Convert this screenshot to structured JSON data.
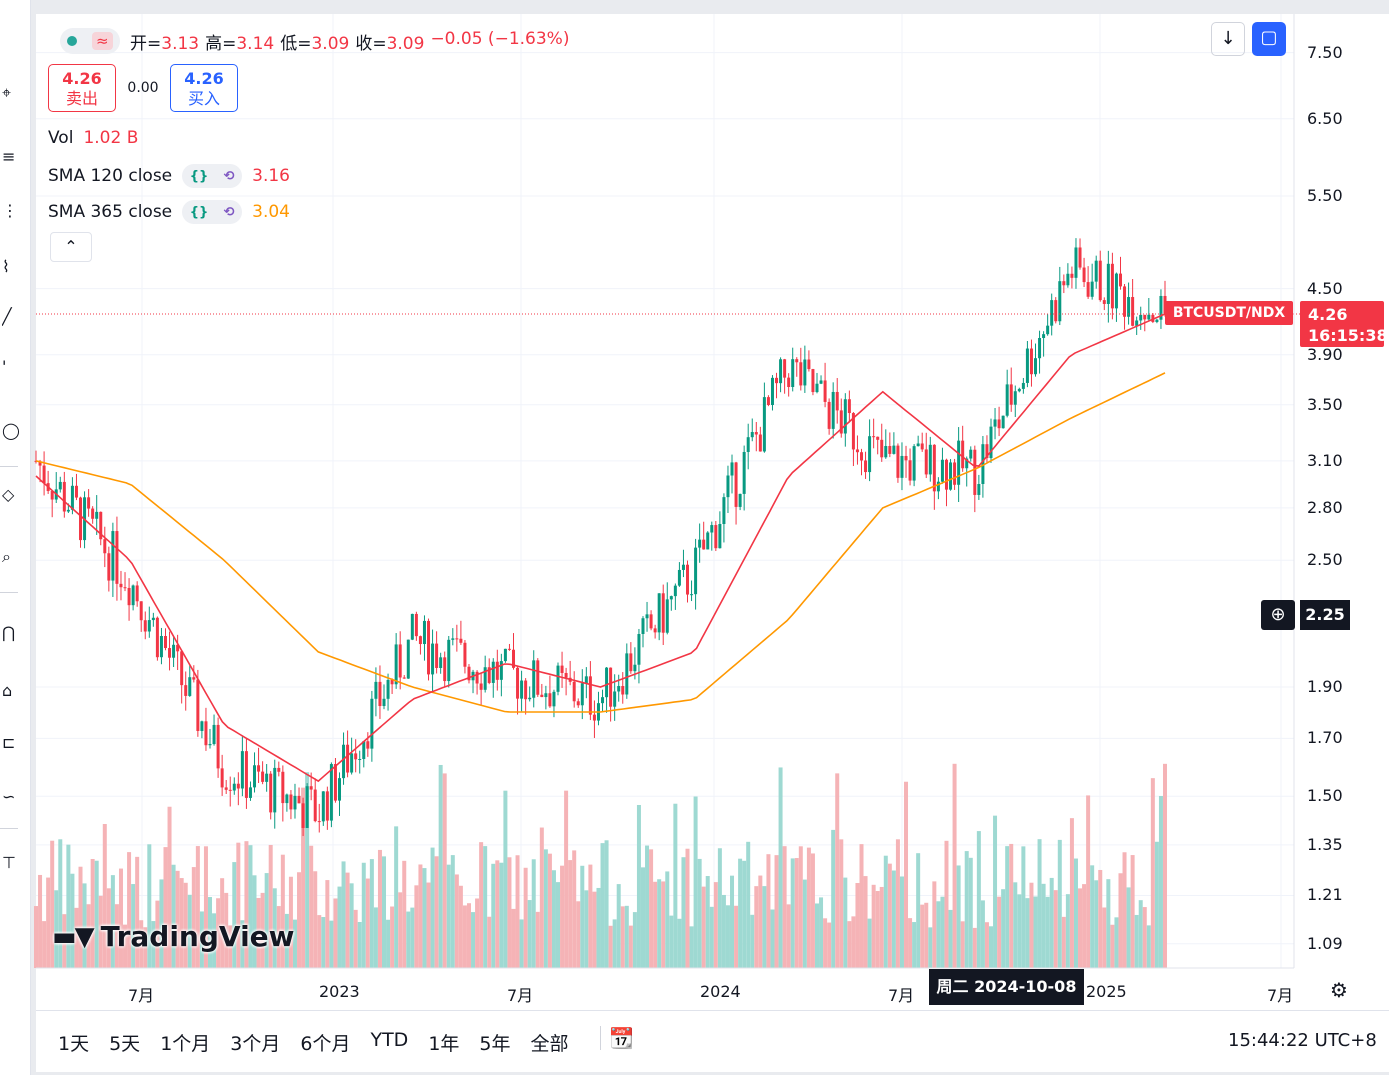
{
  "legend": {
    "ohlc": [
      {
        "label": "开=",
        "value": "3.13"
      },
      {
        "label": "高=",
        "value": "3.14"
      },
      {
        "label": "低=",
        "value": "3.09"
      },
      {
        "label": "收=",
        "value": "3.09"
      }
    ],
    "change": "−0.05 (−1.63%)",
    "wave_icon": "≈"
  },
  "trade": {
    "sell_price": "4.26",
    "sell_label": "卖出",
    "spread": "0.00",
    "buy_price": "4.26",
    "buy_label": "买入"
  },
  "indicators": {
    "vol": {
      "label": "Vol",
      "value": "1.02 B"
    },
    "sma120": {
      "label": "SMA 120 close",
      "value": "3.16"
    },
    "sma365": {
      "label": "SMA 365 close",
      "value": "3.04"
    },
    "code_icon": "{}",
    "loop_icon": "⟲",
    "collapse_icon": "⌃"
  },
  "price_axis": [
    "7.50",
    "6.50",
    "5.50",
    "4.50",
    "3.90",
    "3.50",
    "3.10",
    "2.80",
    "2.50",
    "1.90",
    "1.70",
    "1.50",
    "1.35",
    "1.21",
    "1.09"
  ],
  "last_price": {
    "symbol": "BTCUSDT/NDX",
    "price": "4.26",
    "countdown": "16:15:38"
  },
  "crosshair": {
    "price": "2.25",
    "date": "周二 2024-10-08",
    "plus_icon": "⊕"
  },
  "time_axis": [
    "7月",
    "2023",
    "7月",
    "2024",
    "7月",
    "2025",
    "7月"
  ],
  "watermark": "TradingView",
  "ranges": [
    "1天",
    "5天",
    "1个月",
    "3个月",
    "6个月",
    "YTD",
    "1年",
    "5年",
    "全部"
  ],
  "clock": "15:44:22 UTC+8",
  "colors": {
    "up": "#089981",
    "down": "#f23645",
    "sma120": "#f23645",
    "sma365": "#ff9800",
    "vol_up": "#9ed9d2",
    "vol_down": "#f5b3b6"
  },
  "chart_data": {
    "type": "line",
    "title": "",
    "xlabel": "",
    "ylabel": "",
    "ylim": [
      1.0,
      7.8
    ],
    "log_scale": true,
    "x": [
      "2022-04",
      "2022-07",
      "2022-10",
      "2023-01",
      "2023-04",
      "2023-07",
      "2023-10",
      "2024-01",
      "2024-04",
      "2024-07",
      "2024-10",
      "2025-01",
      "2025-03"
    ],
    "series": [
      {
        "name": "price",
        "values": [
          3.1,
          2.4,
          1.6,
          1.45,
          2.1,
          1.95,
          1.85,
          2.45,
          3.8,
          3.1,
          3.05,
          4.7,
          4.26
        ]
      },
      {
        "name": "SMA 120 close",
        "values": [
          3.0,
          2.5,
          1.75,
          1.55,
          1.85,
          2.0,
          1.9,
          2.05,
          3.0,
          3.6,
          3.05,
          3.9,
          4.26
        ]
      },
      {
        "name": "SMA 365 close",
        "values": [
          3.1,
          2.95,
          2.5,
          2.05,
          1.9,
          1.8,
          1.8,
          1.85,
          2.2,
          2.8,
          3.05,
          3.4,
          3.75
        ]
      }
    ]
  }
}
